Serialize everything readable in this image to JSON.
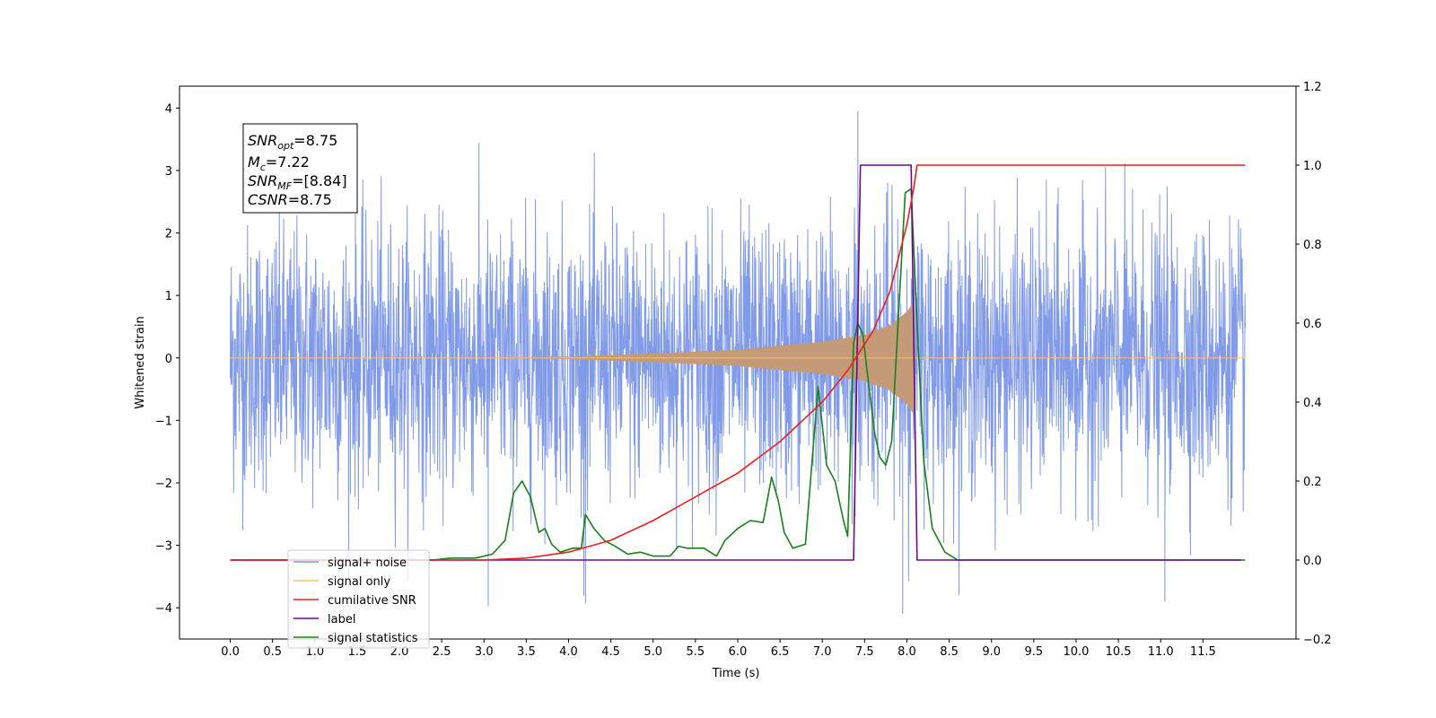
{
  "chart_data": {
    "type": "line",
    "xlabel": "Time (s)",
    "ylabel": "Whitened strain",
    "xlim": [
      -0.6,
      12.6
    ],
    "ylim": [
      -4.5,
      4.35
    ],
    "y2lim": [
      -0.2,
      1.2
    ],
    "xticks": [
      "0.0",
      "0.5",
      "1.0",
      "1.5",
      "2.0",
      "2.5",
      "3.0",
      "3.5",
      "4.0",
      "4.5",
      "5.0",
      "5.5",
      "6.0",
      "6.5",
      "7.0",
      "7.5",
      "8.0",
      "8.5",
      "9.0",
      "9.5",
      "10.0",
      "10.5",
      "11.0",
      "11.5"
    ],
    "yticks": [
      "4",
      "3",
      "2",
      "1",
      "0",
      "−1",
      "−2",
      "−3",
      "−4"
    ],
    "y2ticks": [
      "1.2",
      "1.0",
      "0.8",
      "0.6",
      "0.4",
      "0.2",
      "0.0",
      "−0.2"
    ],
    "grid": false,
    "legend_position": "lower-left",
    "colors": {
      "noise": "#7b96e8",
      "signal": "#ffbf6a",
      "signal_fill": "#c49a78",
      "csnr": "#e8211f",
      "label": "#6c0a8c",
      "statistics": "#18801c"
    },
    "legend": [
      {
        "name": "signal+ noise",
        "color": "#7b96e8"
      },
      {
        "name": "signal only",
        "color": "#ffbf6a"
      },
      {
        "name": "cumilative SNR",
        "color": "#e8211f"
      },
      {
        "name": "label",
        "color": "#6c0a8c"
      },
      {
        "name": "signal statistics",
        "color": "#18801c"
      }
    ],
    "annotation": {
      "snr_opt": {
        "base": "SNR",
        "sub": "opt",
        "value": "=8.75"
      },
      "mc": {
        "base": "M",
        "sub": "c",
        "value": "=7.22"
      },
      "snr_mf": {
        "base": "SNR",
        "sub": "MF",
        "value": "=[8.84]"
      },
      "csnr": {
        "base": "CSNR",
        "sub": "",
        "value": "=8.75"
      }
    },
    "series": [
      {
        "name": "signal+ noise",
        "axis": "left",
        "description_values": {
          "x_start": 0.0,
          "x_end": 12.0,
          "typical_min": -3.2,
          "typical_max": 3.4,
          "max": 3.95,
          "min": -4.1
        }
      },
      {
        "name": "signal only",
        "axis": "left",
        "x_start": 0.0,
        "x_end": 12.0,
        "envelope": {
          "x": [
            3.0,
            4.0,
            5.0,
            6.0,
            7.0,
            7.5,
            7.8,
            8.0,
            8.08,
            8.1
          ],
          "amp": [
            0.0,
            0.02,
            0.07,
            0.13,
            0.26,
            0.37,
            0.52,
            0.74,
            0.9,
            0.0
          ]
        }
      },
      {
        "name": "cumilative SNR",
        "axis": "right",
        "x": [
          0.0,
          3.0,
          3.5,
          4.0,
          4.5,
          5.0,
          5.5,
          6.0,
          6.5,
          7.0,
          7.3,
          7.6,
          7.8,
          8.0,
          8.08,
          8.12,
          12.0
        ],
        "y": [
          0.0,
          0.0,
          0.005,
          0.02,
          0.05,
          0.1,
          0.16,
          0.22,
          0.3,
          0.4,
          0.48,
          0.58,
          0.68,
          0.85,
          0.94,
          1.0,
          1.0
        ]
      },
      {
        "name": "label",
        "axis": "right",
        "x": [
          0.0,
          7.37,
          7.45,
          8.05,
          8.12,
          11.95
        ],
        "y": [
          0.0,
          0.0,
          1.0,
          1.0,
          0.0,
          0.0
        ]
      },
      {
        "name": "signal statistics",
        "axis": "right",
        "x": [
          0.0,
          2.4,
          2.6,
          2.9,
          3.1,
          3.25,
          3.35,
          3.45,
          3.55,
          3.65,
          3.72,
          3.8,
          3.9,
          4.05,
          4.15,
          4.2,
          4.3,
          4.42,
          4.55,
          4.7,
          4.85,
          5.0,
          5.2,
          5.3,
          5.4,
          5.6,
          5.75,
          5.85,
          6.0,
          6.15,
          6.3,
          6.4,
          6.48,
          6.55,
          6.65,
          6.8,
          6.95,
          7.05,
          7.15,
          7.25,
          7.3,
          7.37,
          7.42,
          7.48,
          7.55,
          7.62,
          7.68,
          7.75,
          7.82,
          7.9,
          7.98,
          8.05,
          8.12,
          8.2,
          8.3,
          8.45,
          8.6,
          12.0
        ],
        "y": [
          0.0,
          0.0,
          0.005,
          0.005,
          0.015,
          0.05,
          0.17,
          0.2,
          0.16,
          0.07,
          0.08,
          0.04,
          0.02,
          0.03,
          0.03,
          0.115,
          0.08,
          0.05,
          0.035,
          0.015,
          0.02,
          0.01,
          0.01,
          0.035,
          0.03,
          0.03,
          0.01,
          0.05,
          0.08,
          0.1,
          0.095,
          0.21,
          0.15,
          0.07,
          0.03,
          0.04,
          0.44,
          0.24,
          0.2,
          0.1,
          0.06,
          0.55,
          0.6,
          0.57,
          0.44,
          0.32,
          0.26,
          0.24,
          0.3,
          0.62,
          0.93,
          0.94,
          0.6,
          0.25,
          0.08,
          0.02,
          0.0,
          0.0
        ]
      }
    ]
  }
}
